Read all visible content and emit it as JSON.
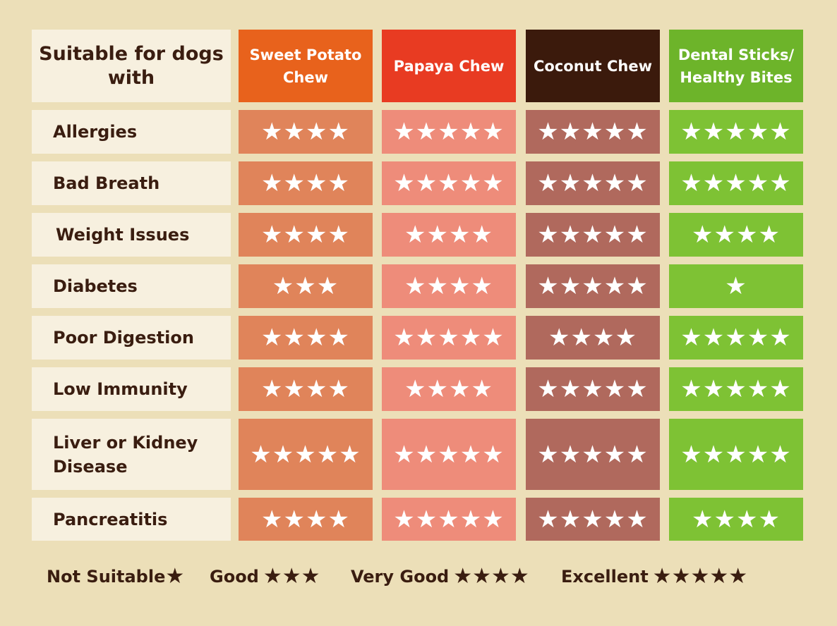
{
  "corner_title": "Suitable for dogs with",
  "columns": [
    {
      "label": "Sweet Potato Chew",
      "header_color": "#e8621c",
      "cell_color": "#e0845a"
    },
    {
      "label": "Papaya Chew",
      "header_color": "#e83b22",
      "cell_color": "#ee8c7a"
    },
    {
      "label": "Coconut Chew",
      "header_color": "#3b1a0c",
      "cell_color": "#b0695d"
    },
    {
      "label": "Dental Sticks/ Healthy Bites",
      "header_color": "#6db42a",
      "cell_color": "#7ec234"
    }
  ],
  "rows": [
    {
      "label": "Allergies",
      "ratings": [
        4,
        5,
        5,
        5
      ]
    },
    {
      "label": "Bad Breath",
      "ratings": [
        4,
        5,
        5,
        5
      ]
    },
    {
      "label": "Weight Issues",
      "ratings": [
        4,
        4,
        5,
        4
      ]
    },
    {
      "label": "Diabetes",
      "ratings": [
        3,
        4,
        5,
        1
      ]
    },
    {
      "label": "Poor Digestion",
      "ratings": [
        4,
        5,
        4,
        5
      ]
    },
    {
      "label": "Low Immunity",
      "ratings": [
        4,
        4,
        5,
        5
      ]
    },
    {
      "label": "Liver or Kidney Disease",
      "ratings": [
        5,
        5,
        5,
        5
      ]
    },
    {
      "label": "Pancreatitis",
      "ratings": [
        4,
        5,
        5,
        4
      ]
    }
  ],
  "legend": [
    {
      "label": "Not Suitable",
      "stars": 1
    },
    {
      "label": "Good",
      "stars": 3
    },
    {
      "label": "Very Good",
      "stars": 4
    },
    {
      "label": "Excellent",
      "stars": 5
    }
  ]
}
